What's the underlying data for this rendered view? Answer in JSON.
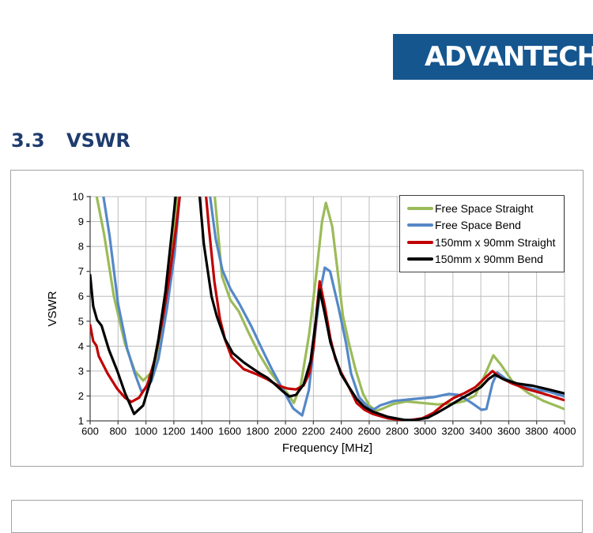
{
  "logo": {
    "text": "ADVANTECH",
    "bg_color": "#15568F",
    "text_color": "#FFFFFF"
  },
  "heading": {
    "number": "3.3",
    "title": "VSWR",
    "color": "#1E3C6E"
  },
  "chart": {
    "grid_color": "#BDBDBD",
    "axis_color": "#4A4A4A",
    "frame_border_color": "#A3A3A3",
    "legend": {
      "items": [
        {
          "label": "Free Space Straight",
          "color": "#9BBB59"
        },
        {
          "label": "Free Space Bend",
          "color": "#5588C7"
        },
        {
          "label": "150mm x 90mm Straight",
          "color": "#C00000"
        },
        {
          "label": "150mm x 90mm Bend",
          "color": "#000000"
        }
      ]
    }
  },
  "chart_data": {
    "type": "line",
    "title": "",
    "xlabel": "Frequency [MHz]",
    "ylabel": "VSWR",
    "xlim": [
      600,
      4000
    ],
    "ylim": [
      1,
      10
    ],
    "x_ticks": [
      600,
      800,
      1000,
      1200,
      1400,
      1600,
      1800,
      2000,
      2200,
      2400,
      2600,
      2800,
      3000,
      3200,
      3400,
      3600,
      3800,
      4000
    ],
    "y_ticks": [
      1,
      2,
      3,
      4,
      5,
      6,
      7,
      8,
      9,
      10
    ],
    "grid": true,
    "legend_position": "top-right",
    "series": [
      {
        "name": "Free Space Straight",
        "color": "#9BBB59",
        "points": [
          [
            600,
            12
          ],
          [
            640,
            10.2
          ],
          [
            700,
            8.5
          ],
          [
            770,
            6.0
          ],
          [
            850,
            4.1
          ],
          [
            920,
            3.0
          ],
          [
            980,
            2.62
          ],
          [
            1050,
            3.0
          ],
          [
            1110,
            4.3
          ],
          [
            1165,
            6.7
          ],
          [
            1210,
            9.0
          ],
          [
            1235,
            10.5
          ],
          [
            1265,
            12
          ],
          [
            1460,
            12
          ],
          [
            1500,
            9.6
          ],
          [
            1545,
            6.8
          ],
          [
            1605,
            5.85
          ],
          [
            1665,
            5.4
          ],
          [
            1735,
            4.55
          ],
          [
            1810,
            3.7
          ],
          [
            1885,
            3.0
          ],
          [
            1960,
            2.45
          ],
          [
            2015,
            2.1
          ],
          [
            2060,
            1.72
          ],
          [
            2110,
            2.45
          ],
          [
            2170,
            4.5
          ],
          [
            2225,
            7.1
          ],
          [
            2262,
            9.0
          ],
          [
            2290,
            9.75
          ],
          [
            2335,
            8.8
          ],
          [
            2378,
            6.8
          ],
          [
            2412,
            5.2
          ],
          [
            2455,
            4.1
          ],
          [
            2500,
            3.1
          ],
          [
            2555,
            2.1
          ],
          [
            2600,
            1.62
          ],
          [
            2650,
            1.4
          ],
          [
            2700,
            1.5
          ],
          [
            2775,
            1.68
          ],
          [
            2865,
            1.78
          ],
          [
            2980,
            1.72
          ],
          [
            3090,
            1.66
          ],
          [
            3205,
            1.7
          ],
          [
            3285,
            1.8
          ],
          [
            3360,
            2.02
          ],
          [
            3430,
            2.85
          ],
          [
            3490,
            3.63
          ],
          [
            3545,
            3.25
          ],
          [
            3625,
            2.6
          ],
          [
            3740,
            2.12
          ],
          [
            3850,
            1.8
          ],
          [
            3965,
            1.55
          ],
          [
            4000,
            1.47
          ]
        ]
      },
      {
        "name": "Free Space Bend",
        "color": "#5588C7",
        "points": [
          [
            640,
            12
          ],
          [
            690,
            10.2
          ],
          [
            740,
            8.4
          ],
          [
            800,
            5.7
          ],
          [
            865,
            3.9
          ],
          [
            920,
            2.9
          ],
          [
            968,
            2.18
          ],
          [
            1010,
            2.35
          ],
          [
            1040,
            2.6
          ],
          [
            1090,
            3.5
          ],
          [
            1150,
            5.5
          ],
          [
            1205,
            7.7
          ],
          [
            1245,
            10.2
          ],
          [
            1270,
            12
          ],
          [
            1415,
            12
          ],
          [
            1455,
            10.2
          ],
          [
            1500,
            8.3
          ],
          [
            1548,
            7.05
          ],
          [
            1605,
            6.3
          ],
          [
            1670,
            5.7
          ],
          [
            1755,
            4.8
          ],
          [
            1830,
            3.9
          ],
          [
            1900,
            3.1
          ],
          [
            1982,
            2.25
          ],
          [
            2055,
            1.5
          ],
          [
            2120,
            1.22
          ],
          [
            2168,
            2.25
          ],
          [
            2208,
            4.3
          ],
          [
            2245,
            6.1
          ],
          [
            2282,
            7.15
          ],
          [
            2320,
            7.0
          ],
          [
            2378,
            5.6
          ],
          [
            2435,
            4.1
          ],
          [
            2470,
            2.9
          ],
          [
            2527,
            1.95
          ],
          [
            2594,
            1.54
          ],
          [
            2630,
            1.45
          ],
          [
            2679,
            1.62
          ],
          [
            2776,
            1.8
          ],
          [
            2906,
            1.87
          ],
          [
            3060,
            1.95
          ],
          [
            3170,
            2.08
          ],
          [
            3245,
            2.04
          ],
          [
            3340,
            1.7
          ],
          [
            3405,
            1.44
          ],
          [
            3440,
            1.48
          ],
          [
            3483,
            2.5
          ],
          [
            3518,
            2.94
          ],
          [
            3585,
            2.66
          ],
          [
            3680,
            2.43
          ],
          [
            3772,
            2.28
          ],
          [
            3885,
            2.18
          ],
          [
            4000,
            1.98
          ]
        ]
      },
      {
        "name": "150mm x 90mm Straight",
        "color": "#C00000",
        "points": [
          [
            600,
            4.85
          ],
          [
            622,
            4.2
          ],
          [
            645,
            4.02
          ],
          [
            662,
            3.6
          ],
          [
            725,
            2.9
          ],
          [
            795,
            2.28
          ],
          [
            850,
            1.93
          ],
          [
            895,
            1.76
          ],
          [
            950,
            1.93
          ],
          [
            1010,
            2.45
          ],
          [
            1065,
            3.5
          ],
          [
            1120,
            5.1
          ],
          [
            1167,
            6.75
          ],
          [
            1215,
            8.7
          ],
          [
            1248,
            10.3
          ],
          [
            1275,
            12
          ],
          [
            1392,
            12
          ],
          [
            1428,
            10.2
          ],
          [
            1452,
            8.7
          ],
          [
            1490,
            6.6
          ],
          [
            1530,
            5.1
          ],
          [
            1568,
            4.25
          ],
          [
            1615,
            3.55
          ],
          [
            1700,
            3.08
          ],
          [
            1790,
            2.88
          ],
          [
            1870,
            2.67
          ],
          [
            1945,
            2.42
          ],
          [
            2015,
            2.3
          ],
          [
            2075,
            2.26
          ],
          [
            2130,
            2.42
          ],
          [
            2170,
            2.9
          ],
          [
            2200,
            3.9
          ],
          [
            2225,
            5.5
          ],
          [
            2245,
            6.6
          ],
          [
            2282,
            5.6
          ],
          [
            2322,
            4.3
          ],
          [
            2357,
            3.5
          ],
          [
            2398,
            2.95
          ],
          [
            2455,
            2.35
          ],
          [
            2510,
            1.72
          ],
          [
            2565,
            1.45
          ],
          [
            2625,
            1.28
          ],
          [
            2735,
            1.1
          ],
          [
            2865,
            1.01
          ],
          [
            2980,
            1.1
          ],
          [
            3060,
            1.32
          ],
          [
            3132,
            1.65
          ],
          [
            3205,
            1.92
          ],
          [
            3285,
            2.12
          ],
          [
            3360,
            2.35
          ],
          [
            3418,
            2.66
          ],
          [
            3483,
            3.0
          ],
          [
            3545,
            2.72
          ],
          [
            3625,
            2.5
          ],
          [
            3740,
            2.26
          ],
          [
            3850,
            2.09
          ],
          [
            4000,
            1.83
          ]
        ]
      },
      {
        "name": "150mm x 90mm Bend",
        "color": "#000000",
        "points": [
          [
            600,
            6.85
          ],
          [
            622,
            5.6
          ],
          [
            650,
            5.05
          ],
          [
            682,
            4.82
          ],
          [
            735,
            3.85
          ],
          [
            795,
            3.0
          ],
          [
            850,
            2.12
          ],
          [
            915,
            1.28
          ],
          [
            980,
            1.62
          ],
          [
            1035,
            2.65
          ],
          [
            1090,
            4.3
          ],
          [
            1140,
            6.2
          ],
          [
            1188,
            8.7
          ],
          [
            1218,
            10.3
          ],
          [
            1245,
            12
          ],
          [
            1352,
            12
          ],
          [
            1382,
            10.2
          ],
          [
            1415,
            8.1
          ],
          [
            1470,
            6.0
          ],
          [
            1508,
            5.2
          ],
          [
            1565,
            4.3
          ],
          [
            1622,
            3.72
          ],
          [
            1700,
            3.35
          ],
          [
            1757,
            3.13
          ],
          [
            1812,
            2.92
          ],
          [
            1870,
            2.73
          ],
          [
            1926,
            2.46
          ],
          [
            1982,
            2.18
          ],
          [
            2027,
            1.98
          ],
          [
            2075,
            2.04
          ],
          [
            2130,
            2.46
          ],
          [
            2180,
            3.4
          ],
          [
            2212,
            4.8
          ],
          [
            2245,
            6.26
          ],
          [
            2282,
            5.3
          ],
          [
            2322,
            4.15
          ],
          [
            2365,
            3.42
          ],
          [
            2398,
            2.88
          ],
          [
            2450,
            2.4
          ],
          [
            2510,
            1.88
          ],
          [
            2565,
            1.56
          ],
          [
            2625,
            1.37
          ],
          [
            2735,
            1.16
          ],
          [
            2850,
            1.04
          ],
          [
            2925,
            1.03
          ],
          [
            3020,
            1.13
          ],
          [
            3093,
            1.34
          ],
          [
            3172,
            1.6
          ],
          [
            3246,
            1.85
          ],
          [
            3320,
            2.08
          ],
          [
            3400,
            2.35
          ],
          [
            3455,
            2.68
          ],
          [
            3500,
            2.85
          ],
          [
            3568,
            2.66
          ],
          [
            3660,
            2.5
          ],
          [
            3772,
            2.41
          ],
          [
            3885,
            2.26
          ],
          [
            4000,
            2.1
          ]
        ]
      }
    ]
  }
}
